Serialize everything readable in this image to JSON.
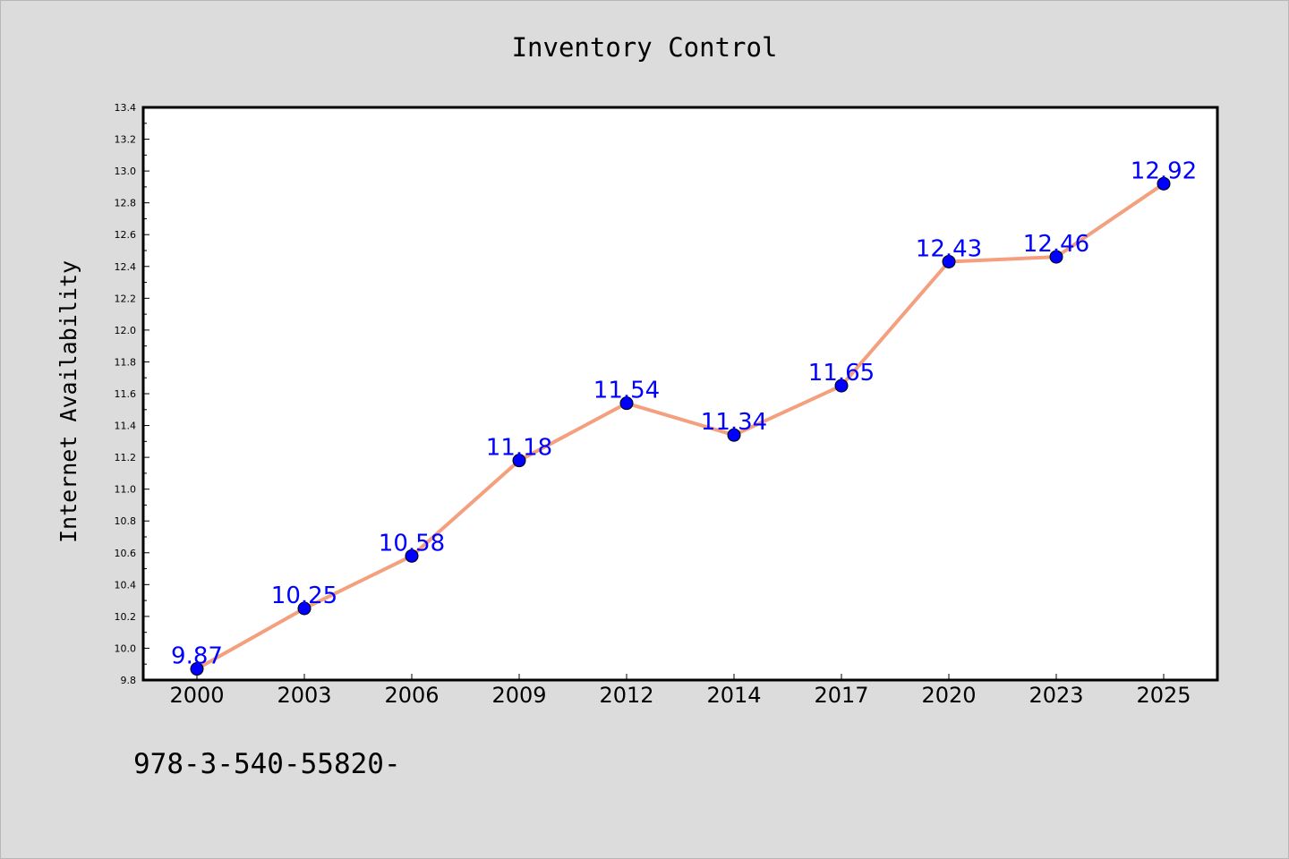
{
  "chart_data": {
    "type": "line",
    "title": "Inventory Control",
    "xlabel": "",
    "ylabel": "Internet Availability",
    "categories": [
      "2000",
      "2003",
      "2006",
      "2009",
      "2012",
      "2014",
      "2017",
      "2020",
      "2023",
      "2025"
    ],
    "series": [
      {
        "values": [
          9.87,
          10.25,
          10.58,
          11.18,
          11.54,
          11.34,
          11.65,
          12.43,
          12.46,
          12.92
        ],
        "data_labels": [
          "9.87",
          "10.25",
          "10.58",
          "11.18",
          "11.54",
          "11.34",
          "11.65",
          "12.43",
          "12.46",
          "12.92"
        ]
      }
    ],
    "ylim": [
      9.8,
      13.4
    ],
    "yticks": [
      "9.8",
      "10.0",
      "10.2",
      "10.4",
      "10.6",
      "10.8",
      "11.0",
      "11.2",
      "11.4",
      "11.6",
      "11.8",
      "12.0",
      "12.2",
      "12.4",
      "12.6",
      "12.8",
      "13.0",
      "13.2",
      "13.4"
    ],
    "grid": false,
    "legend": "none",
    "colors": {
      "line": "#f4a07f",
      "marker": "#0000ff",
      "data_label": "#0000ff",
      "plot_background": "#ffffff",
      "figure_background": "#dcdcdc"
    }
  },
  "footer": {
    "text": "978-3-540-55820-"
  }
}
